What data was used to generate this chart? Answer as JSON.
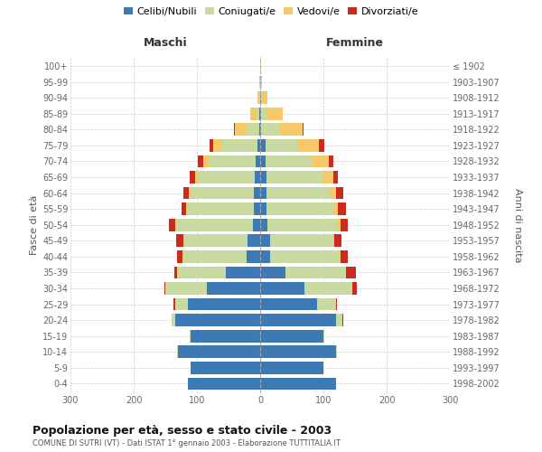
{
  "age_groups": [
    "0-4",
    "5-9",
    "10-14",
    "15-19",
    "20-24",
    "25-29",
    "30-34",
    "35-39",
    "40-44",
    "45-49",
    "50-54",
    "55-59",
    "60-64",
    "65-69",
    "70-74",
    "75-79",
    "80-84",
    "85-89",
    "90-94",
    "95-99",
    "100+"
  ],
  "birth_years": [
    "1998-2002",
    "1993-1997",
    "1988-1992",
    "1983-1987",
    "1978-1982",
    "1973-1977",
    "1968-1972",
    "1963-1967",
    "1958-1962",
    "1953-1957",
    "1948-1952",
    "1943-1947",
    "1938-1942",
    "1933-1937",
    "1928-1932",
    "1923-1927",
    "1918-1922",
    "1913-1917",
    "1908-1912",
    "1903-1907",
    "≤ 1902"
  ],
  "maschi": {
    "celibe": [
      115,
      110,
      130,
      110,
      135,
      115,
      85,
      55,
      22,
      20,
      12,
      10,
      10,
      8,
      7,
      5,
      2,
      1,
      0,
      0,
      0
    ],
    "coniugato": [
      0,
      0,
      1,
      1,
      5,
      20,
      65,
      75,
      100,
      100,
      120,
      105,
      100,
      90,
      75,
      55,
      20,
      5,
      2,
      0,
      0
    ],
    "vedovo": [
      0,
      0,
      0,
      0,
      0,
      0,
      0,
      1,
      1,
      1,
      2,
      2,
      3,
      5,
      8,
      15,
      18,
      10,
      3,
      1,
      0
    ],
    "divorziato": [
      0,
      0,
      0,
      0,
      0,
      2,
      2,
      5,
      8,
      12,
      10,
      8,
      8,
      8,
      8,
      5,
      2,
      0,
      0,
      0,
      0
    ]
  },
  "femmine": {
    "nubile": [
      120,
      100,
      120,
      100,
      120,
      90,
      70,
      40,
      15,
      15,
      12,
      10,
      10,
      10,
      8,
      8,
      2,
      2,
      1,
      0,
      0
    ],
    "coniugata": [
      0,
      0,
      2,
      2,
      10,
      30,
      75,
      95,
      110,
      100,
      110,
      105,
      100,
      90,
      75,
      50,
      30,
      8,
      2,
      1,
      0
    ],
    "vedova": [
      0,
      0,
      0,
      0,
      0,
      0,
      0,
      1,
      2,
      2,
      5,
      8,
      10,
      15,
      25,
      35,
      35,
      25,
      8,
      2,
      1
    ],
    "divorziata": [
      0,
      0,
      0,
      0,
      2,
      2,
      8,
      15,
      12,
      12,
      12,
      12,
      12,
      8,
      8,
      8,
      2,
      0,
      1,
      0,
      0
    ]
  },
  "colors": {
    "celibe": "#3d7ab5",
    "coniugato": "#c8daa0",
    "vedovo": "#f5c96a",
    "divorziato": "#cc2a1f"
  },
  "legend_labels": [
    "Celibi/Nubili",
    "Coniugati/e",
    "Vedovi/e",
    "Divorziati/e"
  ],
  "title": "Popolazione per età, sesso e stato civile - 2003",
  "subtitle": "COMUNE DI SUTRI (VT) - Dati ISTAT 1° gennaio 2003 - Elaborazione TUTTITALIA.IT",
  "label_maschi": "Maschi",
  "label_femmine": "Femmine",
  "ylabel_left": "Fasce di età",
  "ylabel_right": "Anni di nascita",
  "xlim": 300,
  "background_color": "#ffffff",
  "grid_color": "#cccccc"
}
